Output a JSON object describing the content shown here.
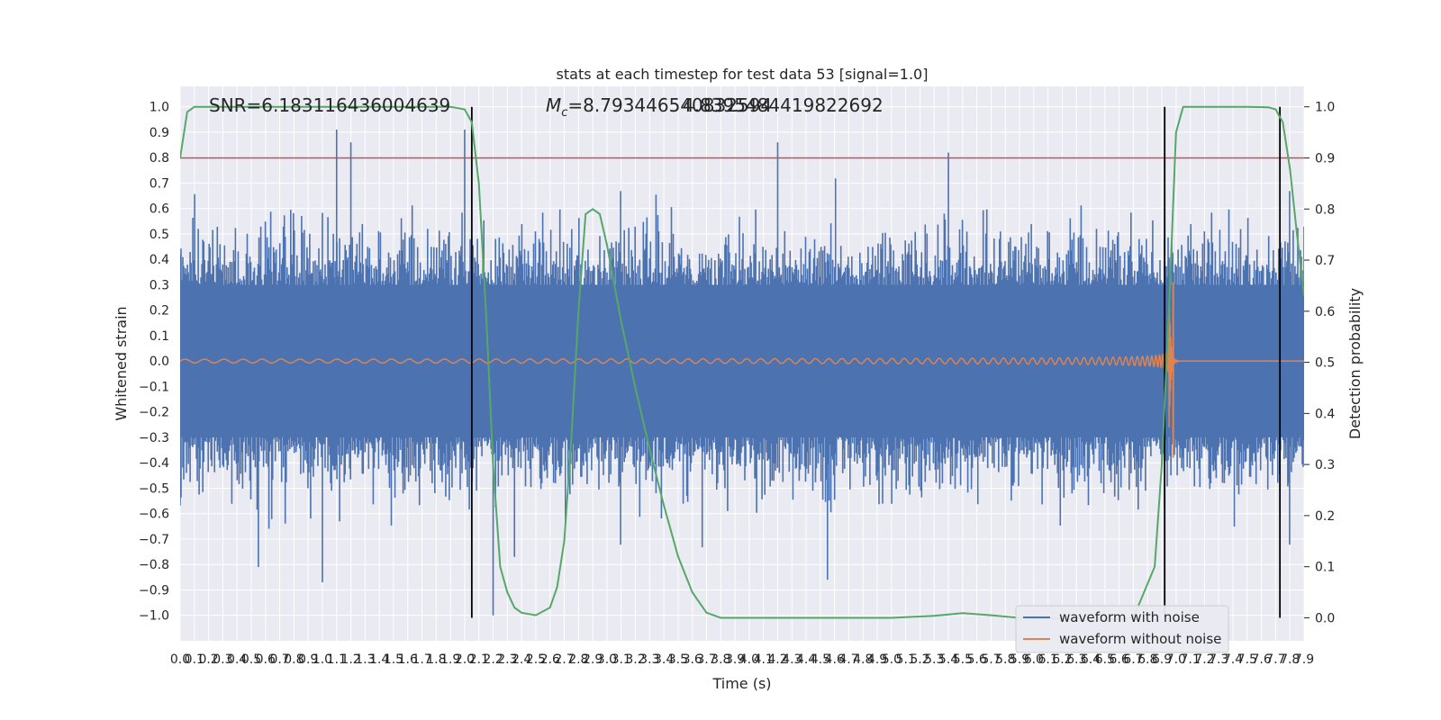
{
  "chart_data": {
    "type": "line",
    "title": "stats at each timestep for test data 53 [signal=1.0]",
    "xlabel": "Time (s)",
    "ylabel_left": "Whitened strain",
    "ylabel_right": "Detection probability",
    "annotations": {
      "snr": "SNR=6.183116436004639",
      "mc_symbol": "M",
      "mc_sub": "c",
      "mc_value": "=8.793446540832594",
      "mc_overlap": "4.8395484419822692"
    },
    "xlim": [
      0.0,
      7.9
    ],
    "ylim_left": [
      -1.1,
      1.08
    ],
    "ylim_right": [
      -0.045,
      1.04
    ],
    "x_ticks": [
      "0.0",
      "0.1",
      "0.2",
      "0.3",
      "0.4",
      "0.5",
      "0.6",
      "0.7",
      "0.8",
      "0.9",
      "1.0",
      "1.1",
      "1.2",
      "1.3",
      "1.4",
      "1.5",
      "1.6",
      "1.7",
      "1.8",
      "1.9",
      "2.0",
      "2.1",
      "2.2",
      "2.3",
      "2.4",
      "2.5",
      "2.6",
      "2.7",
      "2.8",
      "2.9",
      "3.0",
      "3.1",
      "3.2",
      "3.3",
      "3.4",
      "3.5",
      "3.6",
      "3.7",
      "3.8",
      "3.9",
      "4.0",
      "4.1",
      "4.2",
      "4.3",
      "4.4",
      "4.5",
      "4.6",
      "4.7",
      "4.8",
      "4.9",
      "5.0",
      "5.1",
      "5.2",
      "5.3",
      "5.4",
      "5.5",
      "5.6",
      "5.7",
      "5.8",
      "5.9",
      "6.0",
      "6.1",
      "6.2",
      "6.3",
      "6.4",
      "6.5",
      "6.6",
      "6.7",
      "6.8",
      "6.9",
      "7.0",
      "7.1",
      "7.2",
      "7.3",
      "7.4",
      "7.5",
      "7.6",
      "7.7",
      "7.8",
      "7.9"
    ],
    "y_ticks_left": [
      "1.0",
      "0.9",
      "0.8",
      "0.7",
      "0.6",
      "0.5",
      "0.4",
      "0.3",
      "0.2",
      "0.1",
      "0.0",
      "−0.1",
      "−0.2",
      "−0.3",
      "−0.4",
      "−0.5",
      "−0.6",
      "−0.7",
      "−0.8",
      "−0.9",
      "−1.0"
    ],
    "y_ticks_right": [
      "1.0",
      "0.9",
      "0.8",
      "0.7",
      "0.6",
      "0.5",
      "0.4",
      "0.3",
      "0.2",
      "0.1",
      "0.0"
    ],
    "threshold": 0.9,
    "vertical_markers": [
      2.05,
      6.92,
      7.73
    ],
    "series": [
      {
        "name": "waveform with noise",
        "color": "#4c72b0",
        "envelope": 0.45,
        "peaks": [
          [
            1.2,
            0.86
          ],
          [
            1.1,
            0.91
          ],
          [
            2.0,
            0.91
          ],
          [
            5.4,
            0.82
          ],
          [
            4.2,
            0.86
          ],
          [
            2.2,
            -1.0
          ],
          [
            2.35,
            -0.77
          ],
          [
            0.55,
            -0.81
          ],
          [
            1.0,
            -0.87
          ],
          [
            4.55,
            -0.86
          ]
        ]
      },
      {
        "name": "waveform without noise",
        "color": "#dd8452",
        "chirp_start": 0.005,
        "merger_time": 6.95,
        "merger_peak": 0.31,
        "merger_trough": -0.38
      },
      {
        "color": "#55a868",
        "x": [
          0.0,
          0.05,
          0.1,
          0.15,
          0.3,
          0.6,
          1.0,
          1.5,
          1.9,
          2.0,
          2.05,
          2.1,
          2.15,
          2.2,
          2.25,
          2.3,
          2.35,
          2.4,
          2.5,
          2.6,
          2.65,
          2.7,
          2.75,
          2.8,
          2.85,
          2.9,
          2.95,
          3.0,
          3.1,
          3.2,
          3.3,
          3.4,
          3.5,
          3.6,
          3.7,
          3.8,
          4.0,
          4.5,
          5.0,
          5.3,
          5.5,
          5.7,
          5.9,
          6.1,
          6.3,
          6.5,
          6.7,
          6.85,
          6.9,
          6.95,
          7.0,
          7.05,
          7.1,
          7.3,
          7.5,
          7.65,
          7.7,
          7.75,
          7.8,
          7.85,
          7.9
        ],
        "y": [
          0.9,
          0.99,
          1.0,
          1.0,
          1.0,
          1.0,
          1.0,
          1.0,
          1.0,
          0.995,
          0.97,
          0.85,
          0.6,
          0.3,
          0.1,
          0.05,
          0.02,
          0.01,
          0.005,
          0.02,
          0.06,
          0.15,
          0.35,
          0.6,
          0.79,
          0.8,
          0.79,
          0.73,
          0.58,
          0.45,
          0.33,
          0.22,
          0.12,
          0.05,
          0.01,
          0.0,
          0.0,
          0.0,
          0.0,
          0.004,
          0.009,
          0.005,
          0.0,
          0.0,
          -0.005,
          -0.005,
          0.0,
          0.1,
          0.3,
          0.6,
          0.95,
          1.0,
          1.0,
          1.0,
          1.0,
          0.999,
          0.995,
          0.97,
          0.88,
          0.75,
          0.63
        ]
      }
    ],
    "legend": {
      "placement": "lower right",
      "entries": [
        "waveform with noise",
        "waveform without noise"
      ]
    },
    "grid": true,
    "background": "#eaeaf2",
    "threshold_color": "#c44e52"
  }
}
